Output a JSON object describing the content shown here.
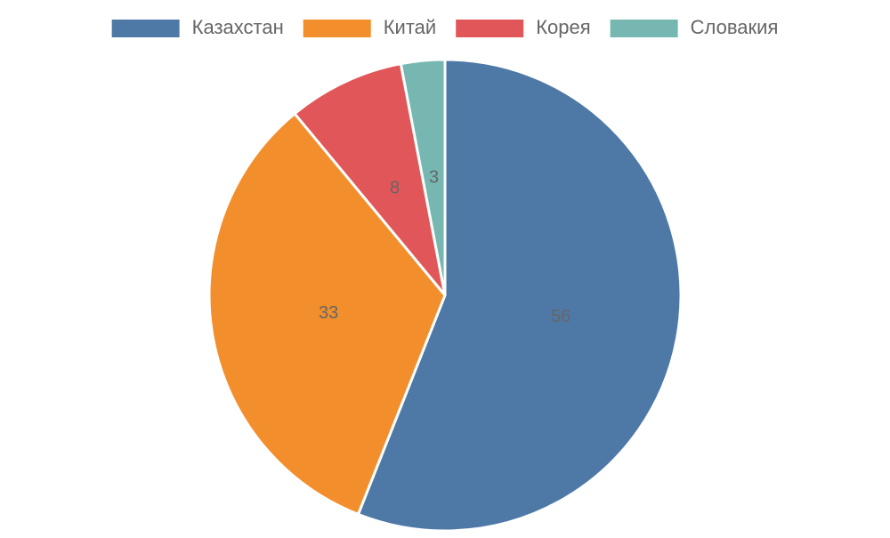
{
  "chart_data": {
    "type": "pie",
    "categories": [
      "Казахстан",
      "Китай",
      "Корея",
      "Словакия"
    ],
    "values": [
      56,
      33,
      8,
      3
    ],
    "colors": [
      "#4e79a7",
      "#f28e2b",
      "#e15759",
      "#76b7b2"
    ],
    "legend": "top"
  }
}
